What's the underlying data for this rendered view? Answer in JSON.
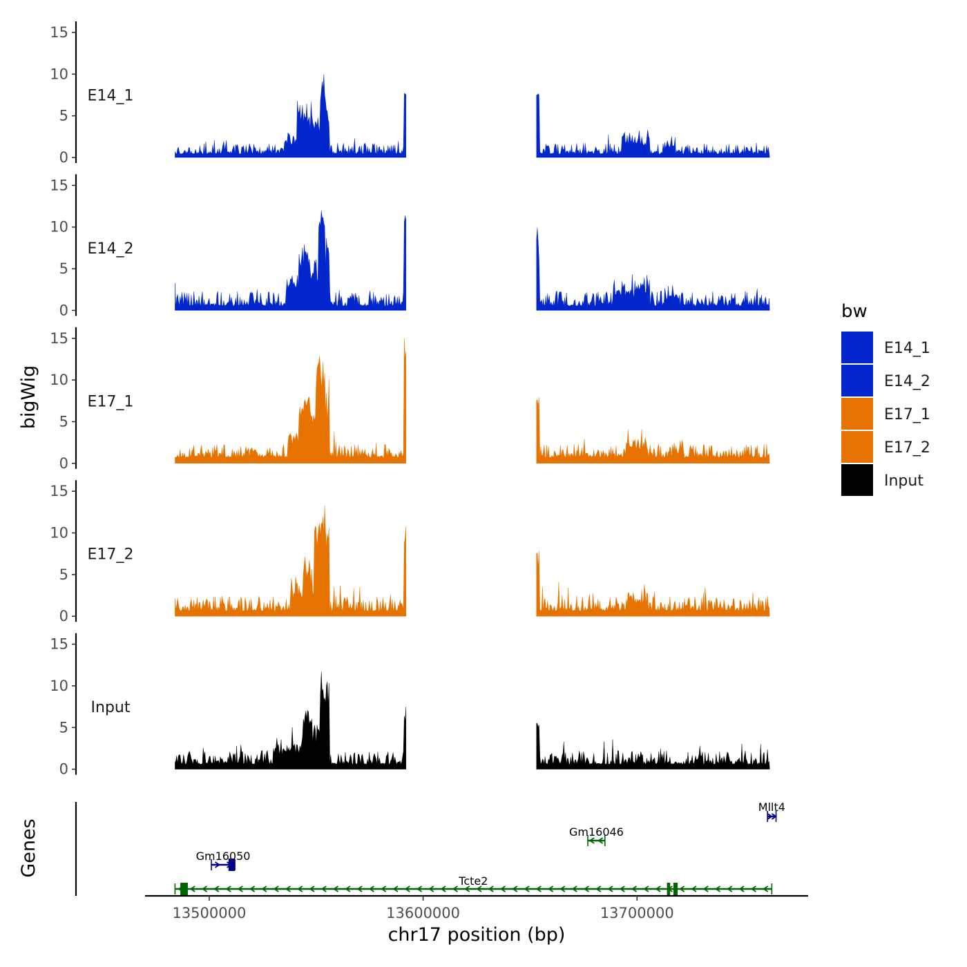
{
  "chart_data": {
    "type": "area",
    "title": "",
    "ylabel": "bigWig",
    "xlabel": "chr17 position (bp)",
    "genes_label": "Genes",
    "ylim": [
      0,
      15
    ],
    "yticks": [
      0,
      5,
      10,
      15
    ],
    "xlim": [
      13470000,
      13780000
    ],
    "xticks": [
      13500000,
      13600000,
      13700000
    ],
    "xtick_labels": [
      "13500000",
      "13600000",
      "13700000"
    ],
    "gap": [
      13592000,
      13653000
    ],
    "legend": {
      "title": "bw",
      "items": [
        {
          "label": "E14_1",
          "color": "#0026CC"
        },
        {
          "label": "E14_2",
          "color": "#0026CC"
        },
        {
          "label": "E17_1",
          "color": "#E67300"
        },
        {
          "label": "E17_2",
          "color": "#E67300"
        },
        {
          "label": "Input",
          "color": "#000000"
        }
      ]
    },
    "tracks": [
      {
        "name": "E14_1",
        "color": "#0026CC",
        "baseline": 0.8,
        "noise": 0.8,
        "peaks": [
          [
            13535000,
            13547000,
            1.6
          ],
          [
            13541000,
            13554000,
            4.0
          ],
          [
            13552000,
            13556000,
            6.5
          ],
          [
            13591000,
            13592000,
            8.0
          ],
          [
            13653000,
            13654500,
            7.5
          ],
          [
            13693000,
            13706000,
            1.6
          ],
          [
            13713000,
            13718000,
            1.0
          ]
        ]
      },
      {
        "name": "E14_2",
        "color": "#0026CC",
        "baseline": 1.0,
        "noise": 1.1,
        "peaks": [
          [
            13536000,
            13547000,
            2.5
          ],
          [
            13542000,
            13554000,
            4.5
          ],
          [
            13551000,
            13556000,
            8.0
          ],
          [
            13591000,
            13592000,
            11.0
          ],
          [
            13653000,
            13654500,
            8.5
          ],
          [
            13689000,
            13700000,
            1.8
          ],
          [
            13700000,
            13706000,
            2.2
          ],
          [
            13713000,
            13720000,
            1.2
          ]
        ]
      },
      {
        "name": "E17_1",
        "color": "#E67300",
        "baseline": 1.3,
        "noise": 1.0,
        "peaks": [
          [
            13537000,
            13548000,
            2.5
          ],
          [
            13542000,
            13554000,
            4.2
          ],
          [
            13550000,
            13556000,
            8.0
          ],
          [
            13591000,
            13592000,
            14.0
          ],
          [
            13653000,
            13654500,
            7.5
          ],
          [
            13695000,
            13705000,
            1.2
          ],
          [
            13717000,
            13722000,
            0.8
          ]
        ]
      },
      {
        "name": "E17_2",
        "color": "#E67300",
        "baseline": 1.2,
        "noise": 1.1,
        "peaks": [
          [
            13538000,
            13548000,
            2.2
          ],
          [
            13544000,
            13554000,
            3.0
          ],
          [
            13549000,
            13556000,
            9.5
          ],
          [
            13591000,
            13592000,
            11.0
          ],
          [
            13653000,
            13654500,
            7.5
          ],
          [
            13695000,
            13705000,
            1.2
          ]
        ]
      },
      {
        "name": "Input",
        "color": "#000000",
        "baseline": 1.1,
        "noise": 1.0,
        "peaks": [
          [
            13530000,
            13548000,
            2.0
          ],
          [
            13544000,
            13556000,
            4.0
          ],
          [
            13552000,
            13556000,
            6.0
          ],
          [
            13591000,
            13592000,
            6.5
          ],
          [
            13653000,
            13654500,
            5.5
          ]
        ]
      }
    ],
    "genes": [
      {
        "name": "Tcte2",
        "strand": "-",
        "color": "#006400",
        "start": 13484000,
        "end": 13763000,
        "row": 0,
        "exons": [
          [
            13486500,
            13490000
          ],
          [
            13714000,
            13715500
          ],
          [
            13717000,
            13719000
          ]
        ]
      },
      {
        "name": "Gm16050",
        "strand": "+",
        "color": "#00008B",
        "start": 13501000,
        "end": 13512000,
        "row": 1,
        "exons": [
          [
            13509000,
            13512000
          ]
        ]
      },
      {
        "name": "Gm16046",
        "strand": "-",
        "color": "#006400",
        "start": 13677000,
        "end": 13685000,
        "row": 2,
        "exons": []
      },
      {
        "name": "Mllt4",
        "strand": "+",
        "color": "#00008B",
        "start": 13761000,
        "end": 13765000,
        "row": 3,
        "exons": []
      }
    ]
  }
}
